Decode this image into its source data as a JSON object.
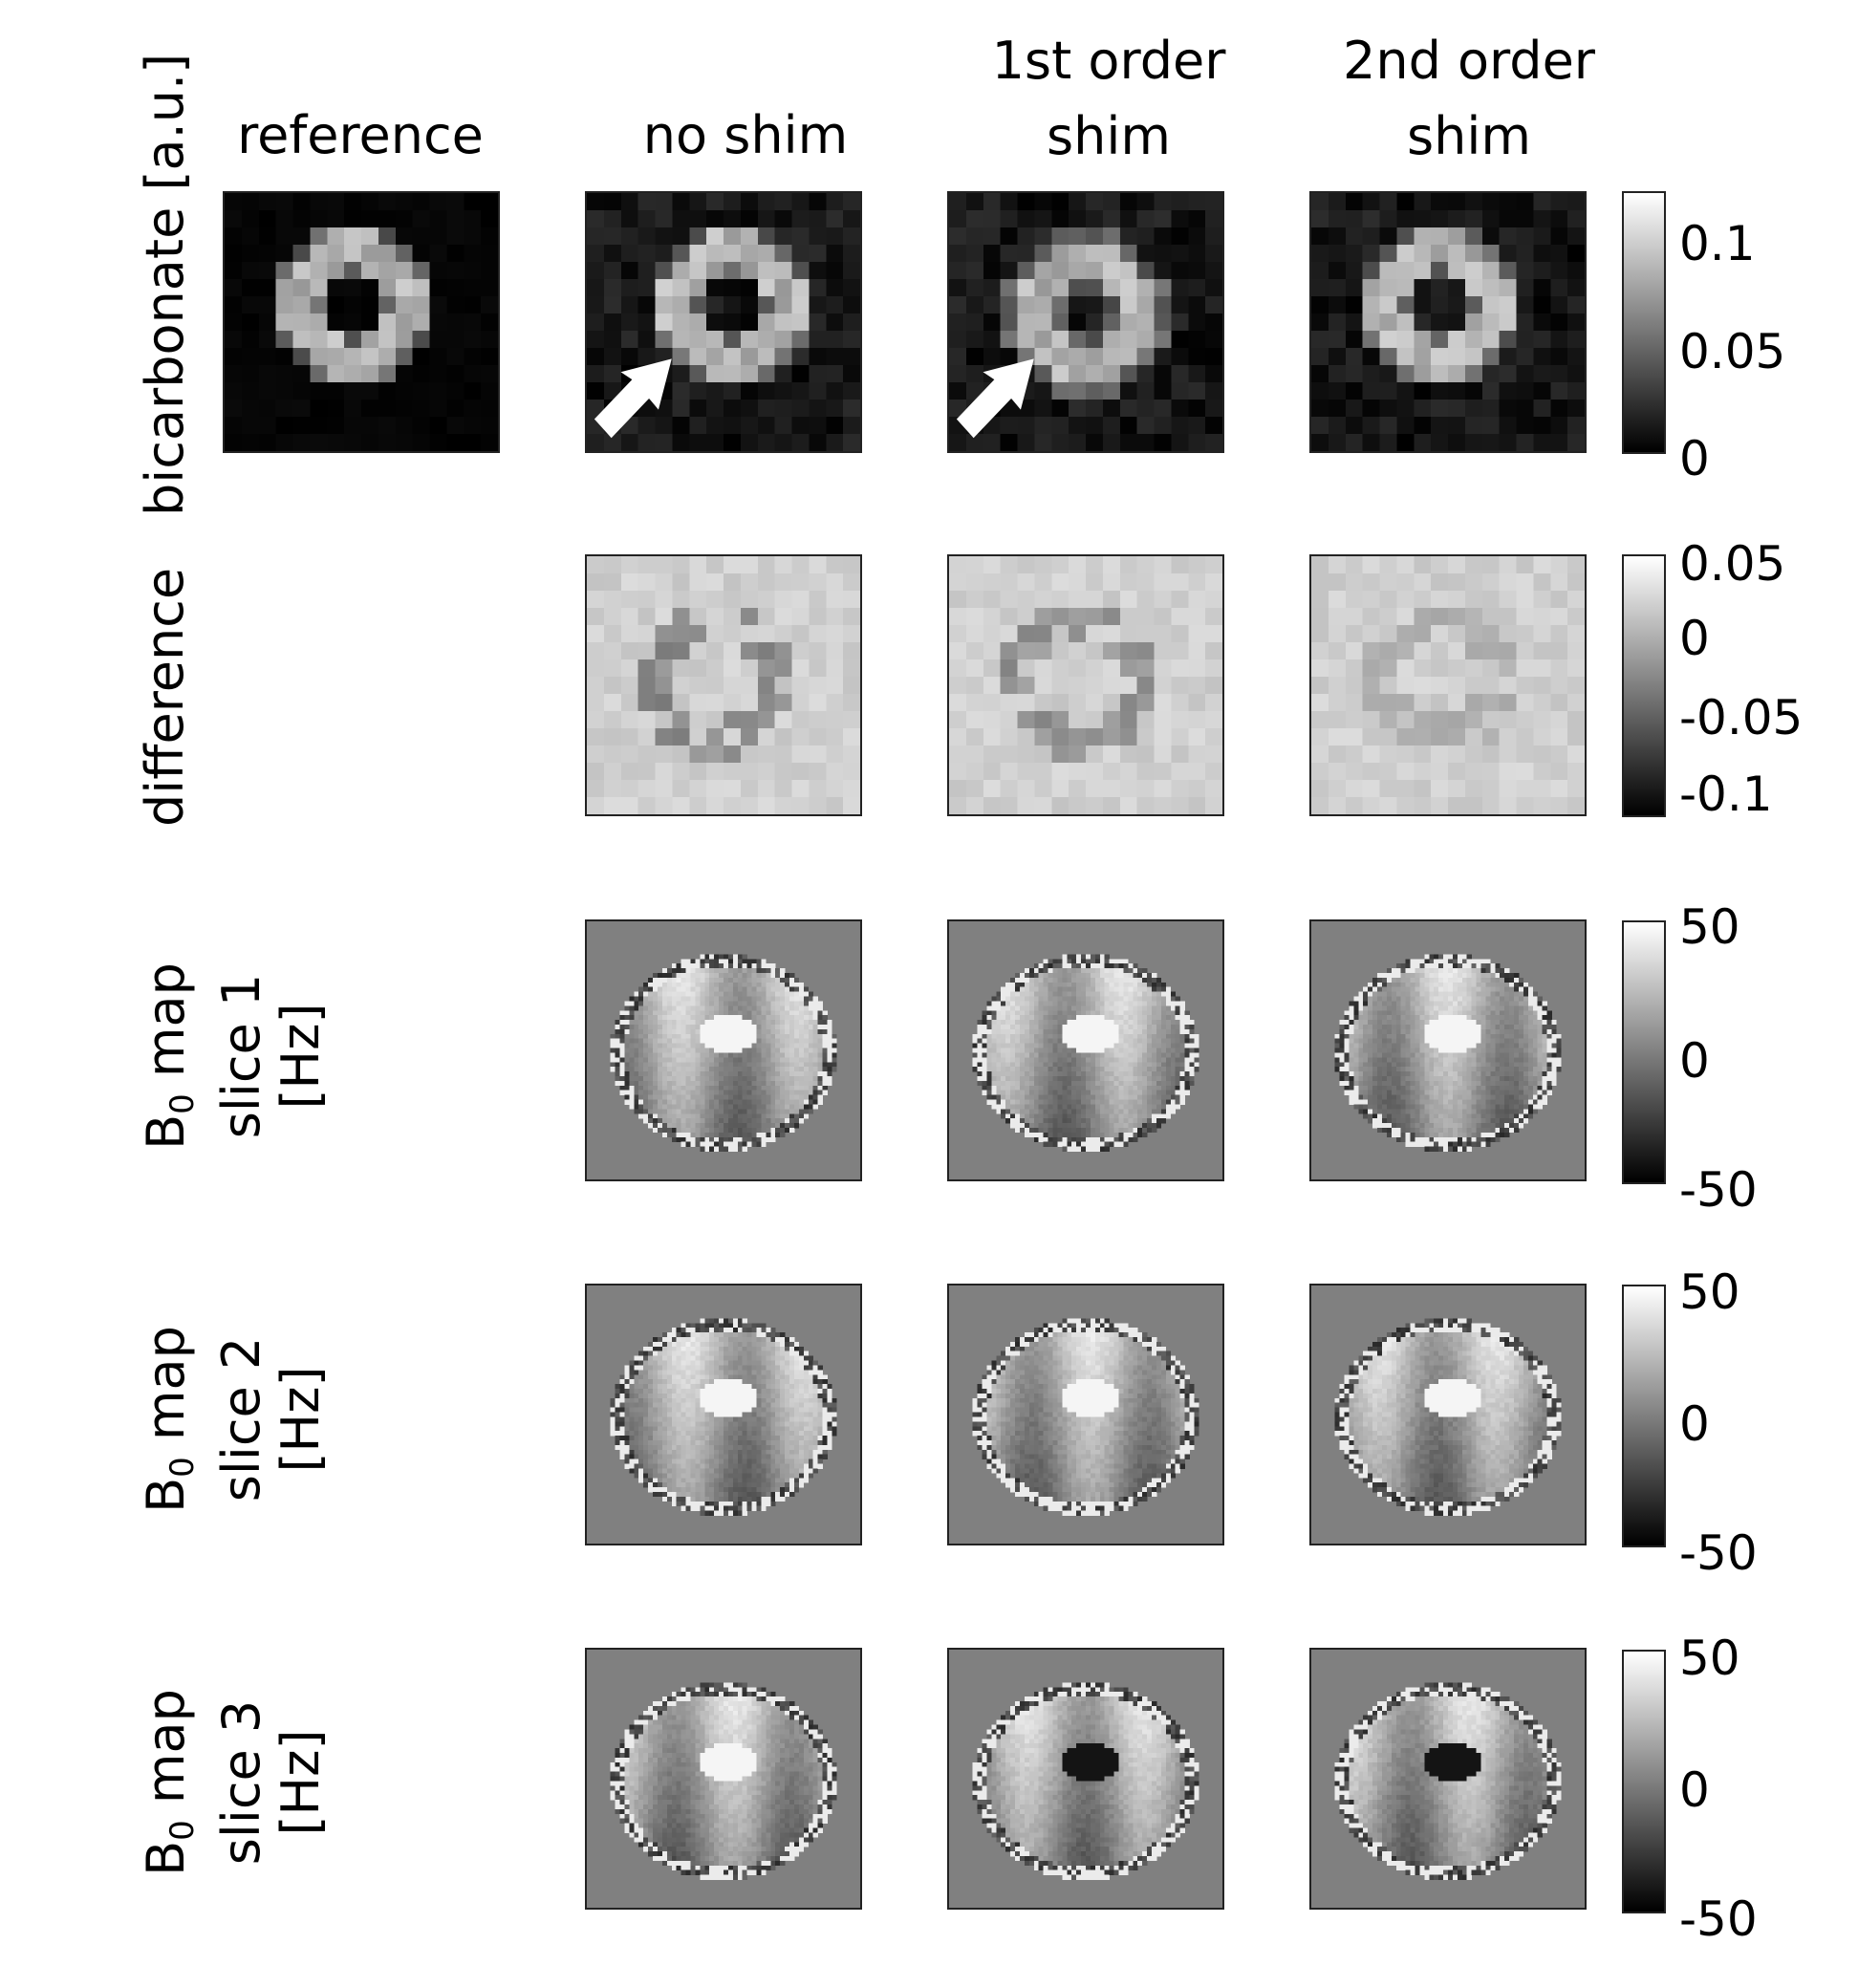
{
  "columns": {
    "reference": "reference",
    "no_shim": "no shim",
    "first_order_line1": "1st order",
    "first_order_line2": "shim",
    "second_order_line1": "2nd order",
    "second_order_line2": "shim"
  },
  "rows": {
    "bicarbonate": "bicarbonate [a.u.]",
    "difference": "difference",
    "b0_prefix": "B",
    "b0_subscript": "0",
    "b0_suffix": " map",
    "slice1": "slice 1",
    "slice2": "slice 2",
    "slice3": "slice 3",
    "unit": "[Hz]"
  },
  "colorbars": {
    "bicarbonate": [
      "0.1",
      "0.05",
      "0"
    ],
    "difference": [
      "0.05",
      "0",
      "-0.05",
      "-0.1"
    ],
    "b0_slice1": [
      "50",
      "0",
      "-50"
    ],
    "b0_slice2": [
      "50",
      "0",
      "-50"
    ],
    "b0_slice3": [
      "50",
      "0",
      "-50"
    ]
  },
  "colors": {
    "colormap_high": "#ffffff",
    "colormap_low": "#000000",
    "arrow": "#ffffff",
    "difference_bg": "#cccccc",
    "b0_bg": "#808080"
  }
}
